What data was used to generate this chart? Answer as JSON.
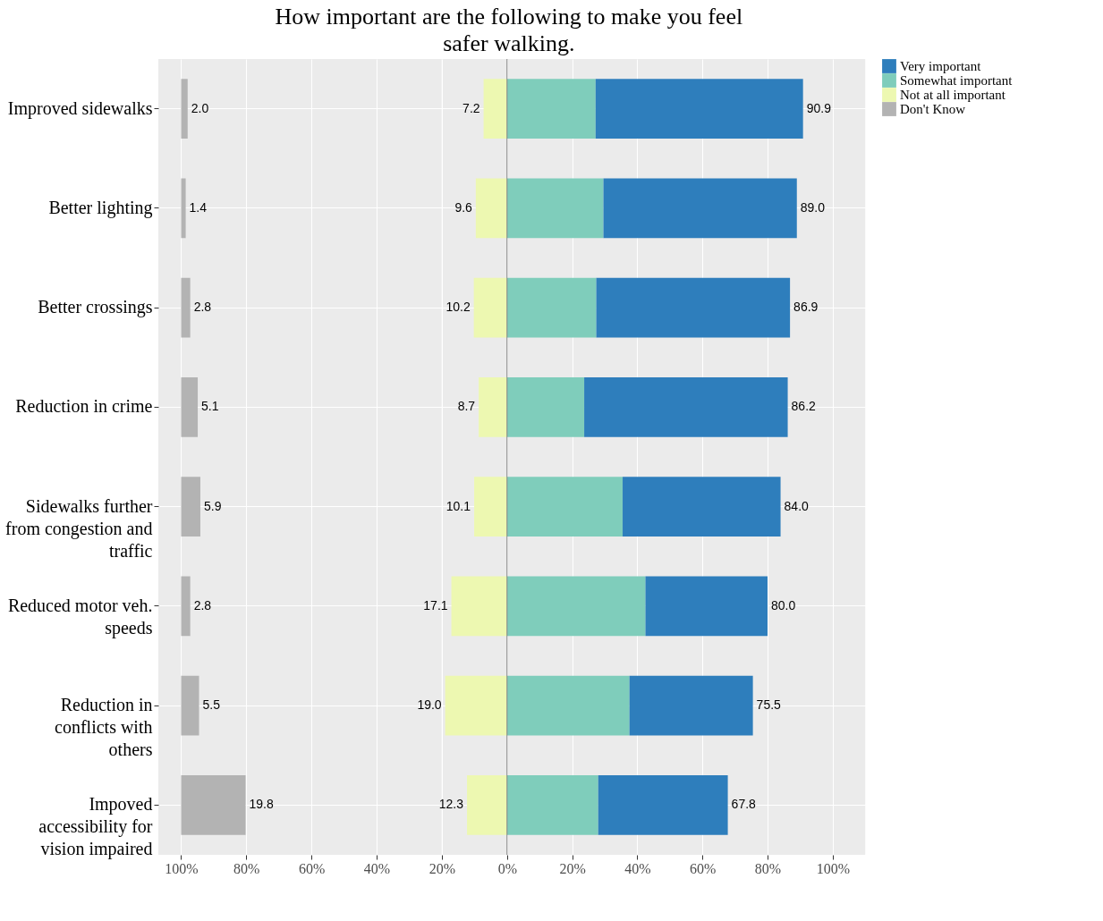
{
  "chart_data": [
    {
      "type": "bar",
      "orientation": "horizontal",
      "tick_labels": true,
      "title": "How important are the following to make you feel safer walking.",
      "categories": [
        "Improved sidewalks",
        "Better lighting",
        "Better crossings",
        "Reduction in crime",
        "Sidewalks further from congestion and traffic",
        "Reduced motor veh. speeds",
        "Reduction in conflicts with others",
        "Impoved accessibility for vision impaired"
      ],
      "series": [
        {
          "name": "Don't Know",
          "color": "#b3b3b3",
          "base": [
            -100,
            -100,
            -100,
            -100,
            -100,
            -100,
            -100,
            -100
          ],
          "values": [
            2.0,
            1.4,
            2.8,
            5.1,
            5.9,
            2.8,
            5.5,
            19.8
          ],
          "value_labels": [
            "2.0",
            "1.4",
            "2.8",
            "5.1",
            "5.9",
            "2.8",
            "5.5",
            "19.8"
          ]
        }
      ],
      "xlim": [
        -107,
        -20
      ],
      "xticks": [
        {
          "value": -100,
          "label": "100%"
        },
        {
          "value": -80,
          "label": "80%"
        },
        {
          "value": -60,
          "label": "60%"
        },
        {
          "value": -40,
          "label": "40%"
        }
      ],
      "grid": true
    },
    {
      "type": "bar",
      "orientation": "horizontal",
      "stacked": true,
      "tick_labels": "x",
      "categories": [
        "Improved sidewalks",
        "Better lighting",
        "Better crossings",
        "Reduction in crime",
        "Sidewalks further from congestion and traffic",
        "Reduced motor veh. speeds",
        "Reduction in conflicts with others",
        "Impoved accessibility for vision impaired"
      ],
      "series": [
        {
          "name": "Somewhat important",
          "color": "#7fcdbb",
          "values": [
            27.2,
            29.6,
            27.4,
            23.7,
            35.5,
            42.5,
            37.6,
            28.0
          ]
        },
        {
          "name": "Very important",
          "color": "#2e7ebc",
          "values": [
            63.7,
            59.4,
            59.5,
            62.5,
            48.5,
            37.5,
            37.9,
            39.8
          ]
        },
        {
          "name": "Not at all important",
          "color": "#edf8b1",
          "values": [
            -7.2,
            -9.6,
            -10.2,
            -8.7,
            -10.1,
            -17.1,
            -19.0,
            -12.3
          ]
        }
      ],
      "annotations": [
        {
          "text": "7.2",
          "x": -7.2,
          "y": "Improved sidewalks"
        },
        {
          "text": "9.6",
          "x": -9.6,
          "y": "Better lighting"
        },
        {
          "text": "10.2",
          "x": -10.2,
          "y": "Better crossings"
        },
        {
          "text": "8.7",
          "x": -8.7,
          "y": "Reduction in crime"
        },
        {
          "text": "10.1",
          "x": -10.1,
          "y": "Sidewalks further from congestion and traffic"
        },
        {
          "text": "17.1",
          "x": -17.1,
          "y": "Reduced motor veh. speeds"
        },
        {
          "text": "19.0",
          "x": -19.0,
          "y": "Reduction in conflicts with others"
        },
        {
          "text": "12.3",
          "x": -12.3,
          "y": "Impoved accessibility for vision impaired"
        },
        {
          "text": "90.9",
          "x": 90.9,
          "y": "Improved sidewalks"
        },
        {
          "text": "89.0",
          "x": 89.0,
          "y": "Better lighting"
        },
        {
          "text": "86.9",
          "x": 86.9,
          "y": "Better crossings"
        },
        {
          "text": "86.2",
          "x": 86.2,
          "y": "Reduction in crime"
        },
        {
          "text": "84.0",
          "x": 84.0,
          "y": "Sidewalks further from congestion and traffic"
        },
        {
          "text": "80.0",
          "x": 80.0,
          "y": "Reduced motor veh. speeds"
        },
        {
          "text": "75.5",
          "x": 75.5,
          "y": "Reduction in conflicts with others"
        },
        {
          "text": "67.8",
          "x": 67.8,
          "y": "Impoved accessibility for vision impaired"
        }
      ],
      "xlim": [
        -20,
        110
      ],
      "xticks": [
        {
          "value": -20,
          "label": "20%"
        },
        {
          "value": 0,
          "label": "0%"
        },
        {
          "value": 20,
          "label": "20%"
        },
        {
          "value": 40,
          "label": "40%"
        },
        {
          "value": 60,
          "label": "60%"
        },
        {
          "value": 80,
          "label": "80%"
        },
        {
          "value": 100,
          "label": "100%"
        }
      ],
      "ref_lines": [
        {
          "axis": "x",
          "value": 0,
          "color": "#808080"
        }
      ],
      "grid": true,
      "legend": "right"
    }
  ]
}
